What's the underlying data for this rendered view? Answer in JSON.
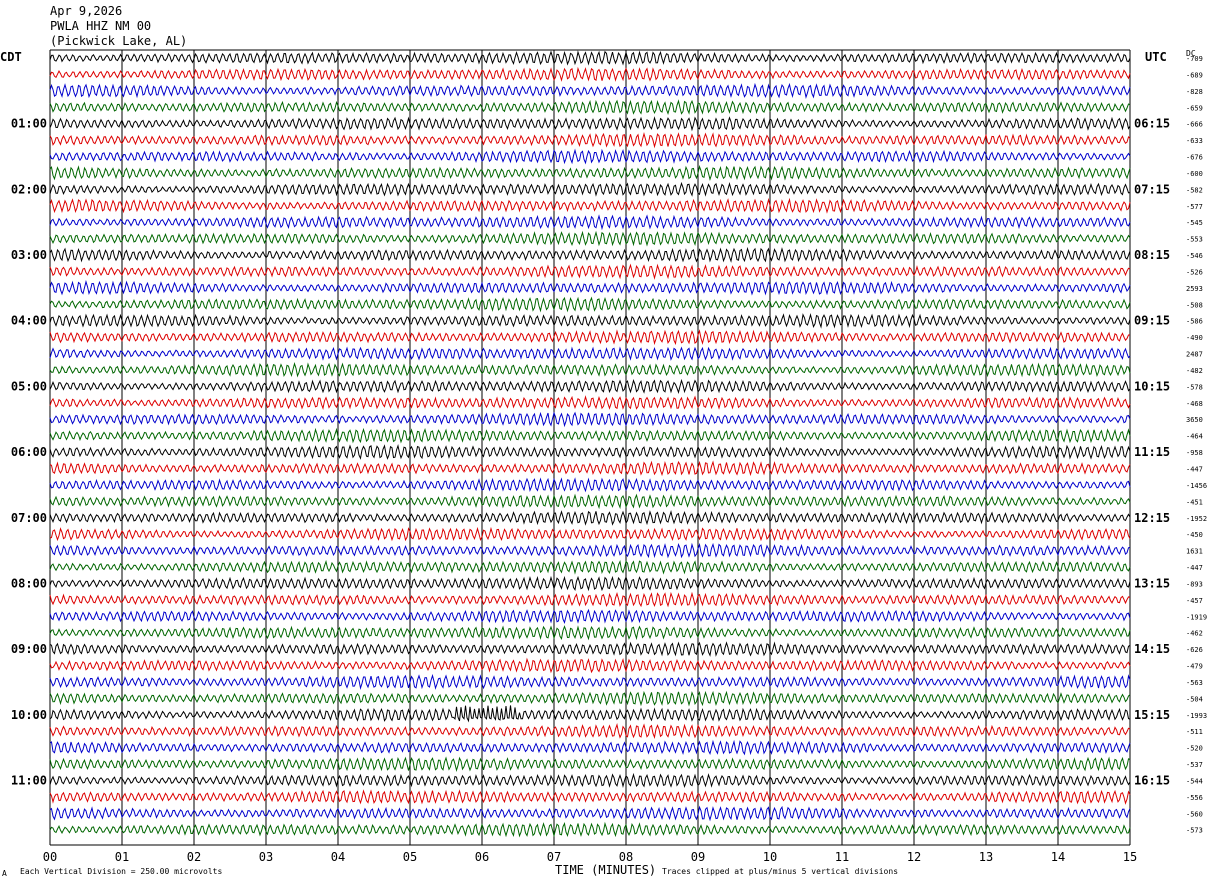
{
  "header": {
    "date": "Apr 9,2026",
    "station": "PWLA HHZ NM 00",
    "location": "(Pickwick Lake, AL)"
  },
  "axes": {
    "left_zone": "CDT",
    "right_zone": "UTC",
    "right_top_label": "DC"
  },
  "footer": {
    "scale_note": "Each Vertical Division =  250.00 microvolts",
    "xlabel": "TIME (MINUTES)",
    "clip_note": "Traces clipped at plus/minus 5 vertical divisions",
    "mark": "A"
  },
  "colors": {
    "trace_cycle": [
      "#000000",
      "#dd0000",
      "#0000cc",
      "#006600"
    ],
    "grid": "#000000",
    "background": "#ffffff"
  },
  "chart_data": {
    "type": "line",
    "subtype": "helicorder",
    "x": {
      "min": 0,
      "max": 15,
      "ticks": [
        "00",
        "01",
        "02",
        "03",
        "04",
        "05",
        "06",
        "07",
        "08",
        "09",
        "10",
        "11",
        "12",
        "13",
        "14",
        "15"
      ]
    },
    "traces_per_hour": 4,
    "trace_count": 48,
    "left_hour_labels": [
      "01:00",
      "02:00",
      "03:00",
      "04:00",
      "05:00",
      "06:00",
      "07:00",
      "08:00",
      "09:00",
      "10:00",
      "11:00"
    ],
    "right_hour_labels": [
      "06:15",
      "07:15",
      "08:15",
      "09:15",
      "10:15",
      "11:15",
      "12:15",
      "13:15",
      "14:15",
      "15:15",
      "16:15"
    ],
    "hour_label_first_trace_index": 4,
    "right_offsets": [
      "-709",
      "-689",
      "-828",
      "-659",
      "-666",
      "-633",
      "-676",
      "-600",
      "-582",
      "-577",
      "-545",
      "-553",
      "-546",
      "-526",
      "2593",
      "-508",
      "-586",
      "-490",
      "2487",
      "-482",
      "-578",
      "-468",
      "3650",
      "-464",
      "-958",
      "-447",
      "-1456",
      "-451",
      "-1952",
      "-450",
      "1631",
      "-447",
      "-893",
      "-457",
      "-1919",
      "-462",
      "-626",
      "-479",
      "-563",
      "-504",
      "-1993",
      "-511",
      "-520",
      "-537",
      "-544",
      "-556",
      "-560",
      "-573"
    ],
    "events": [
      {
        "trace_index": 40,
        "minute_start": 5.6,
        "minute_end": 6.5,
        "note": "high amplitude burst"
      }
    ]
  }
}
